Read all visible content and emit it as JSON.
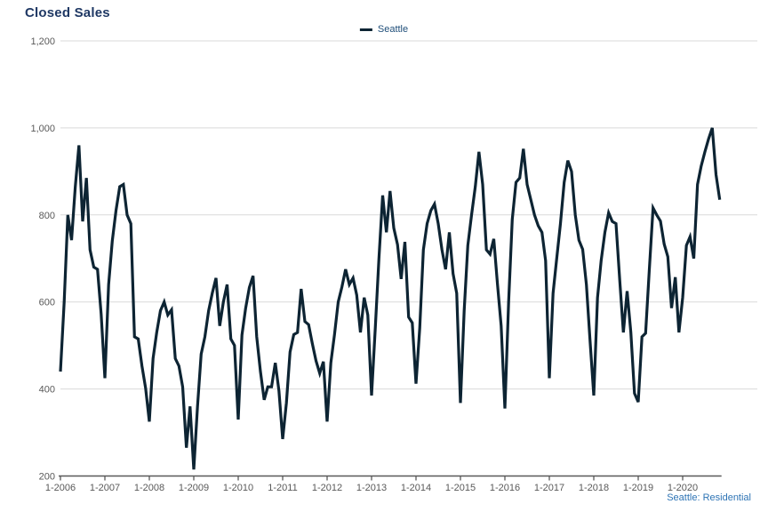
{
  "title": "Closed Sales",
  "legend": {
    "label": "Seattle"
  },
  "footer": "Seattle: Residential",
  "colors": {
    "title": "#1F3864",
    "legend_text": "#1F4E79",
    "axis_text": "#595959",
    "gridline": "#D9D9D9",
    "axis_line": "#595959",
    "series_line": "#0D2433",
    "footer_text": "#2E74B5",
    "background": "#FFFFFF"
  },
  "chart_data": {
    "type": "line",
    "title": "Closed Sales",
    "series_name": "Seattle",
    "frequency": "monthly",
    "x_start": "1-2006",
    "x_tick_labels": [
      "1-2006",
      "1-2007",
      "1-2008",
      "1-2009",
      "1-2010",
      "1-2011",
      "1-2012",
      "1-2013",
      "1-2014",
      "1-2015",
      "1-2016",
      "1-2017",
      "1-2018",
      "1-2019",
      "1-2020"
    ],
    "y_tick_labels": [
      "200",
      "400",
      "600",
      "800",
      "1,000",
      "1,200"
    ],
    "y_tick_values": [
      200,
      400,
      600,
      800,
      1000,
      1200
    ],
    "ylim": [
      200,
      1200
    ],
    "grid": "horizontal",
    "legend_position": "top-center",
    "values": [
      440,
      600,
      800,
      742,
      865,
      960,
      785,
      885,
      720,
      680,
      675,
      572,
      425,
      640,
      740,
      810,
      865,
      870,
      800,
      780,
      520,
      515,
      453,
      402,
      325,
      470,
      530,
      580,
      600,
      570,
      582,
      470,
      453,
      405,
      265,
      360,
      215,
      360,
      480,
      520,
      580,
      620,
      655,
      545,
      600,
      640,
      515,
      500,
      330,
      524,
      585,
      633,
      660,
      520,
      440,
      375,
      405,
      405,
      460,
      396,
      285,
      368,
      485,
      525,
      530,
      630,
      555,
      548,
      505,
      465,
      436,
      463,
      325,
      460,
      525,
      600,
      635,
      675,
      640,
      655,
      616,
      530,
      610,
      570,
      385,
      540,
      700,
      845,
      760,
      855,
      770,
      732,
      653,
      738,
      565,
      552,
      412,
      540,
      720,
      780,
      810,
      825,
      780,
      720,
      675,
      760,
      665,
      620,
      368,
      580,
      730,
      800,
      865,
      945,
      870,
      720,
      710,
      745,
      640,
      545,
      355,
      600,
      790,
      875,
      885,
      952,
      870,
      835,
      800,
      775,
      760,
      695,
      425,
      620,
      700,
      780,
      875,
      925,
      900,
      800,
      742,
      721,
      640,
      511,
      385,
      610,
      695,
      760,
      805,
      785,
      780,
      650,
      530,
      625,
      530,
      390,
      370,
      520,
      528,
      675,
      816,
      800,
      786,
      733,
      704,
      586,
      657,
      530,
      610,
      730,
      750,
      700,
      870,
      912,
      945,
      975,
      1000,
      893,
      835
    ]
  }
}
